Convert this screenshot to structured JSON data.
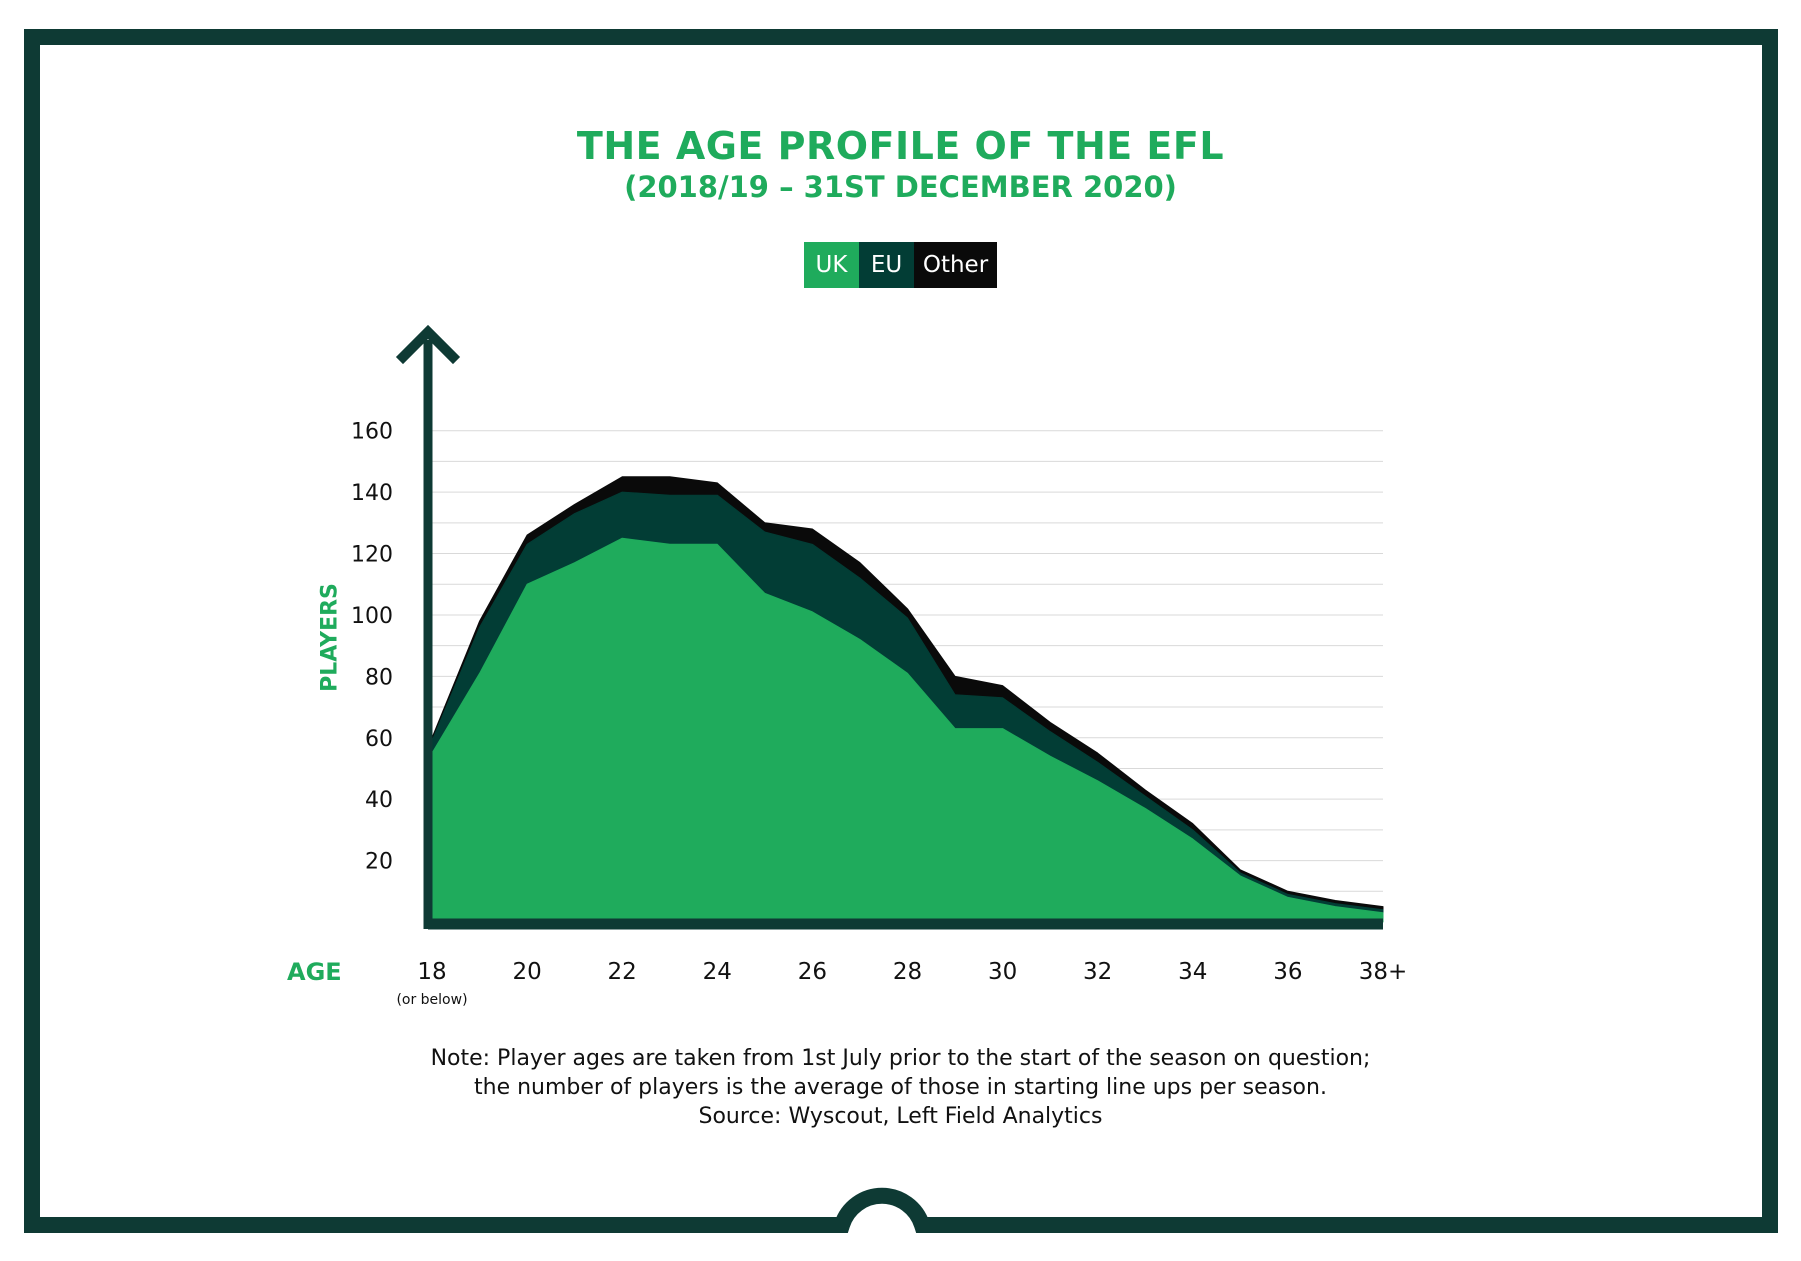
{
  "colors": {
    "frame": "#0e3a34",
    "uk": "#1fab5c",
    "eu": "#023d35",
    "other": "#0a0a0a",
    "grid": "#d9d9d9",
    "axis": "#0e3a34",
    "accent_text": "#1fab5c"
  },
  "header": {
    "title": "THE AGE PROFILE OF THE EFL",
    "subtitle": "(2018/19 – 31ST DECEMBER 2020)"
  },
  "legend": {
    "uk": "UK",
    "eu": "EU",
    "other": "Other"
  },
  "axes": {
    "ylabel": "PLAYERS",
    "xlabel": "AGE",
    "x_first_sublabel": "(or below)"
  },
  "note": {
    "line1": "Note: Player ages are taken from 1st July prior to the start of the season on question;",
    "line2": "the number of players is the average of those in starting line ups per season.",
    "line3": "Source: Wyscout, Left Field Analytics"
  },
  "chart_data": {
    "type": "area",
    "stacked": true,
    "title": "THE AGE PROFILE OF THE EFL",
    "subtitle": "(2018/19 – 31ST DECEMBER 2020)",
    "xlabel": "AGE",
    "ylabel": "PLAYERS",
    "x": [
      18,
      19,
      20,
      21,
      22,
      23,
      24,
      25,
      26,
      27,
      28,
      29,
      30,
      31,
      32,
      33,
      34,
      35,
      36,
      37,
      38
    ],
    "x_tick_values": [
      18,
      20,
      22,
      24,
      26,
      28,
      30,
      32,
      34,
      36,
      38
    ],
    "x_tick_labels": [
      "18",
      "20",
      "22",
      "24",
      "26",
      "28",
      "30",
      "32",
      "34",
      "36",
      "38+"
    ],
    "y_ticks": [
      20,
      40,
      60,
      80,
      100,
      120,
      140,
      160
    ],
    "ylim": [
      0,
      170
    ],
    "grid": true,
    "legend_position": "top-center",
    "series": [
      {
        "name": "UK",
        "values": [
          55,
          81,
          110,
          117,
          125,
          123,
          123,
          107,
          101,
          92,
          81,
          63,
          63,
          54,
          46,
          37,
          27,
          15,
          8,
          5,
          3
        ]
      },
      {
        "name": "EU",
        "values": [
          4,
          15,
          13,
          16,
          15,
          16,
          16,
          20,
          22,
          20,
          18,
          11,
          10,
          8,
          6,
          4,
          3,
          1,
          1,
          1,
          1
        ]
      },
      {
        "name": "Other",
        "values": [
          1,
          2,
          3,
          3,
          5,
          6,
          4,
          3,
          5,
          5,
          3,
          6,
          4,
          3,
          3,
          2,
          2,
          1,
          1,
          1,
          1
        ]
      }
    ]
  }
}
